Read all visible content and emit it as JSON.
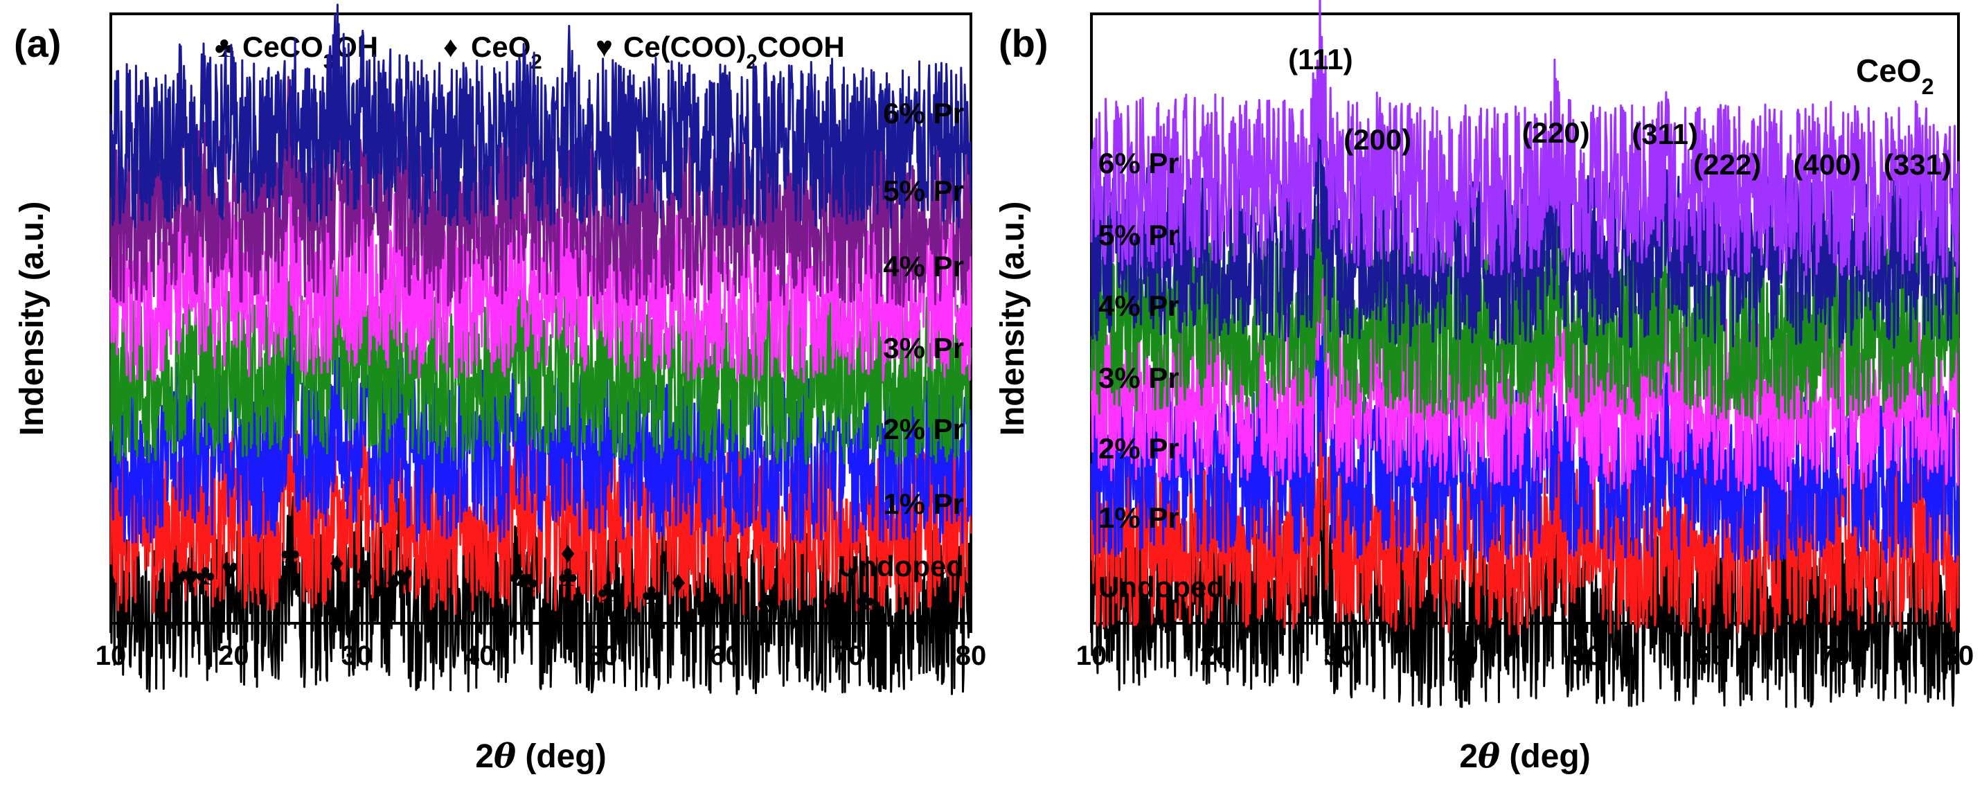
{
  "figure": {
    "panel_a_letter": "(a)",
    "panel_b_letter": "(b)"
  },
  "chart_data": [
    {
      "type": "line",
      "panel": "(a)",
      "xlabel": "2θ (deg)",
      "xlabel_parts": [
        "2",
        "θ",
        " (deg)"
      ],
      "ylabel": "Indensity (a.u.)",
      "xlim": [
        10,
        80
      ],
      "xticks": [
        10,
        20,
        30,
        40,
        50,
        60,
        70,
        80
      ],
      "yticks_shown": false,
      "grid": false,
      "legend": {
        "placement": "top",
        "entries": [
          {
            "symbol": "♣",
            "color": "#000000",
            "label": "CeCO",
            "sub1": "3",
            "label2": "OH"
          },
          {
            "symbol": "♦",
            "color": "#1f3fd8",
            "label": "CeO",
            "sub1": "2",
            "label2": ""
          },
          {
            "symbol": "♥",
            "color": "#e8101a",
            "label": "Ce(COO)",
            "sub1": "2",
            "label2": "COOH"
          }
        ]
      },
      "peaks": [
        {
          "pos": 15.5,
          "h": 0.55
        },
        {
          "pos": 16.4,
          "h": 0.7
        },
        {
          "pos": 17.6,
          "h": 0.6
        },
        {
          "pos": 19.6,
          "h": 1.0
        },
        {
          "pos": 24.6,
          "h": 2.6
        },
        {
          "pos": 28.4,
          "h": 1.7
        },
        {
          "pos": 29.0,
          "h": 0.8
        },
        {
          "pos": 30.5,
          "h": 1.5
        },
        {
          "pos": 33.0,
          "h": 0.9
        },
        {
          "pos": 33.6,
          "h": 1.2
        },
        {
          "pos": 40.2,
          "h": 0.4
        },
        {
          "pos": 43.3,
          "h": 1.3
        },
        {
          "pos": 44.2,
          "h": 0.8
        },
        {
          "pos": 47.2,
          "h": 1.3
        },
        {
          "pos": 50.4,
          "h": 0.5
        },
        {
          "pos": 54.0,
          "h": 0.4
        },
        {
          "pos": 56.2,
          "h": 0.6
        },
        {
          "pos": 63.4,
          "h": 0.25
        },
        {
          "pos": 68.8,
          "h": 0.3
        },
        {
          "pos": 71.4,
          "h": 0.35
        },
        {
          "pos": 76.5,
          "h": 0.25
        }
      ],
      "series": [
        {
          "name": "Undoped",
          "color": "#000000"
        },
        {
          "name": "1% Pr",
          "color": "#ff1a1a"
        },
        {
          "name": "2% Pr",
          "color": "#1a1aff"
        },
        {
          "name": "3% Pr",
          "color": "#1a8c1a"
        },
        {
          "name": "4% Pr",
          "color": "#ff33ff"
        },
        {
          "name": "5% Pr",
          "color": "#7a1a8c"
        },
        {
          "name": "6% Pr",
          "color": "#1a1a99"
        }
      ],
      "markers": [
        {
          "symbol": "♥",
          "color": "#e8101a",
          "x": 15.6
        },
        {
          "symbol": "♥",
          "color": "#e8101a",
          "x": 16.5
        },
        {
          "symbol": "♣",
          "color": "#000000",
          "x": 17.7
        },
        {
          "symbol": "♥",
          "color": "#e8101a",
          "x": 19.7
        },
        {
          "symbol": "♣",
          "color": "#000000",
          "x": 24.6
        },
        {
          "symbol": "♦",
          "color": "#1f3fd8",
          "x": 28.4
        },
        {
          "symbol": "♣",
          "color": "#000000",
          "x": 30.5
        },
        {
          "symbol": "♦",
          "color": "#1f3fd8",
          "x": 33.0
        },
        {
          "symbol": "♥",
          "color": "#e8101a",
          "x": 33.9
        },
        {
          "symbol": "♣",
          "color": "#000000",
          "x": 43.2
        },
        {
          "symbol": "♣",
          "color": "#000000",
          "x": 44.0
        },
        {
          "symbol": "♦",
          "color": "#1f3fd8",
          "x": 47.2
        },
        {
          "symbol": "♣",
          "color": "#000000",
          "x": 47.2
        },
        {
          "symbol": "♣",
          "color": "#000000",
          "x": 50.4
        },
        {
          "symbol": "♣",
          "color": "#000000",
          "x": 54.0
        },
        {
          "symbol": "♦",
          "color": "#1f3fd8",
          "x": 56.2
        },
        {
          "symbol": "♣",
          "color": "#000000",
          "x": 63.4
        },
        {
          "symbol": "♣",
          "color": "#000000",
          "x": 68.8
        },
        {
          "symbol": "♣",
          "color": "#000000",
          "x": 71.4
        }
      ]
    },
    {
      "type": "line",
      "panel": "(b)",
      "title": "CeO2",
      "title_parts": [
        "CeO",
        "2"
      ],
      "xlabel": "2θ (deg)",
      "xlabel_parts": [
        "2",
        "θ",
        " (deg)"
      ],
      "ylabel": "Indensity (a.u.)",
      "xlim": [
        10,
        80
      ],
      "xticks": [
        10,
        20,
        30,
        40,
        50,
        60,
        70,
        80
      ],
      "yticks_shown": false,
      "grid": false,
      "peaks": [
        {
          "pos": 28.5,
          "h": 3.0,
          "hkl": "(111)"
        },
        {
          "pos": 33.1,
          "h": 0.7,
          "hkl": "(200)"
        },
        {
          "pos": 47.5,
          "h": 1.7,
          "hkl": "(220)"
        },
        {
          "pos": 56.3,
          "h": 1.1,
          "hkl": "(311)"
        },
        {
          "pos": 59.1,
          "h": 0.25,
          "hkl": "(222)"
        },
        {
          "pos": 69.4,
          "h": 0.25,
          "hkl": "(400)"
        },
        {
          "pos": 76.7,
          "h": 0.35,
          "hkl": "(331)"
        }
      ],
      "series": [
        {
          "name": "Undoped",
          "color": "#000000"
        },
        {
          "name": "1% Pr",
          "color": "#ff1a1a"
        },
        {
          "name": "2% Pr",
          "color": "#1a1aff"
        },
        {
          "name": "3% Pr",
          "color": "#ff33ff"
        },
        {
          "name": "4% Pr",
          "color": "#1a8c1a"
        },
        {
          "name": "5% Pr",
          "color": "#1a1a99"
        },
        {
          "name": "6% Pr",
          "color": "#a033ff"
        }
      ]
    }
  ]
}
